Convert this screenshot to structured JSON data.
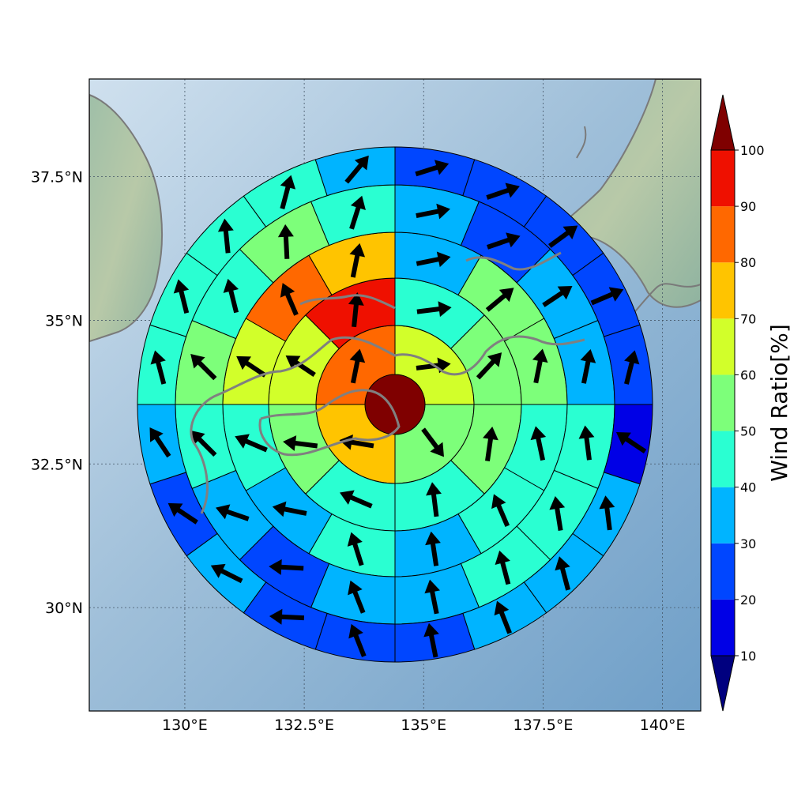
{
  "chart_data": {
    "type": "polar-sector-map",
    "colorbar": {
      "label": "Wind Ratio[%]",
      "ticks": [
        10,
        20,
        30,
        40,
        50,
        60,
        70,
        80,
        90,
        100
      ],
      "range": [
        0,
        110
      ],
      "extend": "both",
      "bins": [
        {
          "from": 0,
          "to": 10,
          "color": "#00007f"
        },
        {
          "from": 10,
          "to": 20,
          "color": "#0000e6"
        },
        {
          "from": 20,
          "to": 30,
          "color": "#0046ff"
        },
        {
          "from": 30,
          "to": 40,
          "color": "#00b4ff"
        },
        {
          "from": 40,
          "to": 50,
          "color": "#2affd2"
        },
        {
          "from": 50,
          "to": 60,
          "color": "#7dff7a"
        },
        {
          "from": 60,
          "to": 70,
          "color": "#d2ff2a"
        },
        {
          "from": 70,
          "to": 80,
          "color": "#ffc400"
        },
        {
          "from": 80,
          "to": 90,
          "color": "#ff6800"
        },
        {
          "from": 90,
          "to": 100,
          "color": "#ef1000"
        },
        {
          "from": 100,
          "to": 110,
          "color": "#7f0000"
        }
      ]
    },
    "map": {
      "lon_range": [
        128.0,
        140.8
      ],
      "lat_range": [
        28.2,
        39.2
      ],
      "x_ticks": [
        {
          "value": 130.0,
          "label": "130°E"
        },
        {
          "value": 132.5,
          "label": "132.5°E"
        },
        {
          "value": 135.0,
          "label": "135°E"
        },
        {
          "value": 137.5,
          "label": "137.5°E"
        },
        {
          "value": 140.0,
          "label": "140°E"
        }
      ],
      "y_ticks": [
        {
          "value": 30.0,
          "label": "30°N"
        },
        {
          "value": 32.5,
          "label": "32.5°N"
        },
        {
          "value": 35.0,
          "label": "35°N"
        },
        {
          "value": 37.5,
          "label": "37.5°N"
        }
      ],
      "grid": true,
      "center": {
        "lon": 135.0,
        "lat": 33.8
      }
    },
    "rings": [
      {
        "n": 1,
        "values": [
          100
        ],
        "arrows": [
          [
            0,
            0
          ]
        ]
      },
      {
        "n": 4,
        "values": [
          62,
          55,
          75,
          85
        ],
        "arrows": [
          [
            40,
            5
          ],
          [
            15,
            -20
          ],
          [
            -30,
            5
          ],
          [
            6,
            30
          ]
        ]
      },
      {
        "n": 8,
        "values": [
          44,
          52,
          52,
          44,
          42,
          55,
          62,
          92
        ],
        "arrows": [
          [
            40,
            5
          ],
          [
            28,
            30
          ],
          [
            5,
            35
          ],
          [
            -5,
            40
          ],
          [
            -35,
            15
          ],
          [
            -40,
            5
          ],
          [
            -30,
            20
          ],
          [
            4,
            40
          ]
        ]
      },
      {
        "n": 12,
        "values": [
          32,
          52,
          52,
          47,
          40,
          32,
          42,
          32,
          40,
          64,
          82,
          72
        ],
        "arrows": [
          [
            40,
            8
          ],
          [
            30,
            25
          ],
          [
            8,
            40
          ],
          [
            -8,
            38
          ],
          [
            -15,
            35
          ],
          [
            -6,
            40
          ],
          [
            -12,
            38
          ],
          [
            -40,
            8
          ],
          [
            -35,
            15
          ],
          [
            -30,
            20
          ],
          [
            -15,
            35
          ],
          [
            8,
            40
          ]
        ]
      },
      {
        "n": 16,
        "values": [
          32,
          22,
          32,
          32,
          48,
          42,
          42,
          32,
          32,
          22,
          32,
          42,
          53,
          48,
          52,
          42
        ],
        "arrows": [
          [
            40,
            8
          ],
          [
            35,
            12
          ],
          [
            30,
            20
          ],
          [
            8,
            40
          ],
          [
            -5,
            40
          ],
          [
            -6,
            38
          ],
          [
            -10,
            38
          ],
          [
            -8,
            40
          ],
          [
            -15,
            38
          ],
          [
            -38,
            2
          ],
          [
            -35,
            12
          ],
          [
            -25,
            25
          ],
          [
            -30,
            30
          ],
          [
            -10,
            40
          ],
          [
            -2,
            40
          ],
          [
            12,
            38
          ]
        ]
      },
      {
        "n": 20,
        "values": [
          22,
          22,
          22,
          22,
          22,
          12,
          32,
          32,
          32,
          22,
          22,
          22,
          32,
          22,
          32,
          42,
          48,
          48,
          42,
          32
        ],
        "arrows": [
          [
            38,
            12
          ],
          [
            35,
            12
          ],
          [
            30,
            22
          ],
          [
            28,
            12
          ],
          [
            10,
            40
          ],
          [
            -30,
            20
          ],
          [
            -5,
            40
          ],
          [
            -10,
            38
          ],
          [
            -15,
            38
          ],
          [
            -8,
            40
          ],
          [
            -15,
            38
          ],
          [
            -40,
            2
          ],
          [
            -30,
            15
          ],
          [
            -30,
            20
          ],
          [
            -20,
            30
          ],
          [
            -10,
            38
          ],
          [
            -10,
            40
          ],
          [
            -4,
            40
          ],
          [
            10,
            38
          ],
          [
            25,
            30
          ]
        ]
      }
    ]
  }
}
